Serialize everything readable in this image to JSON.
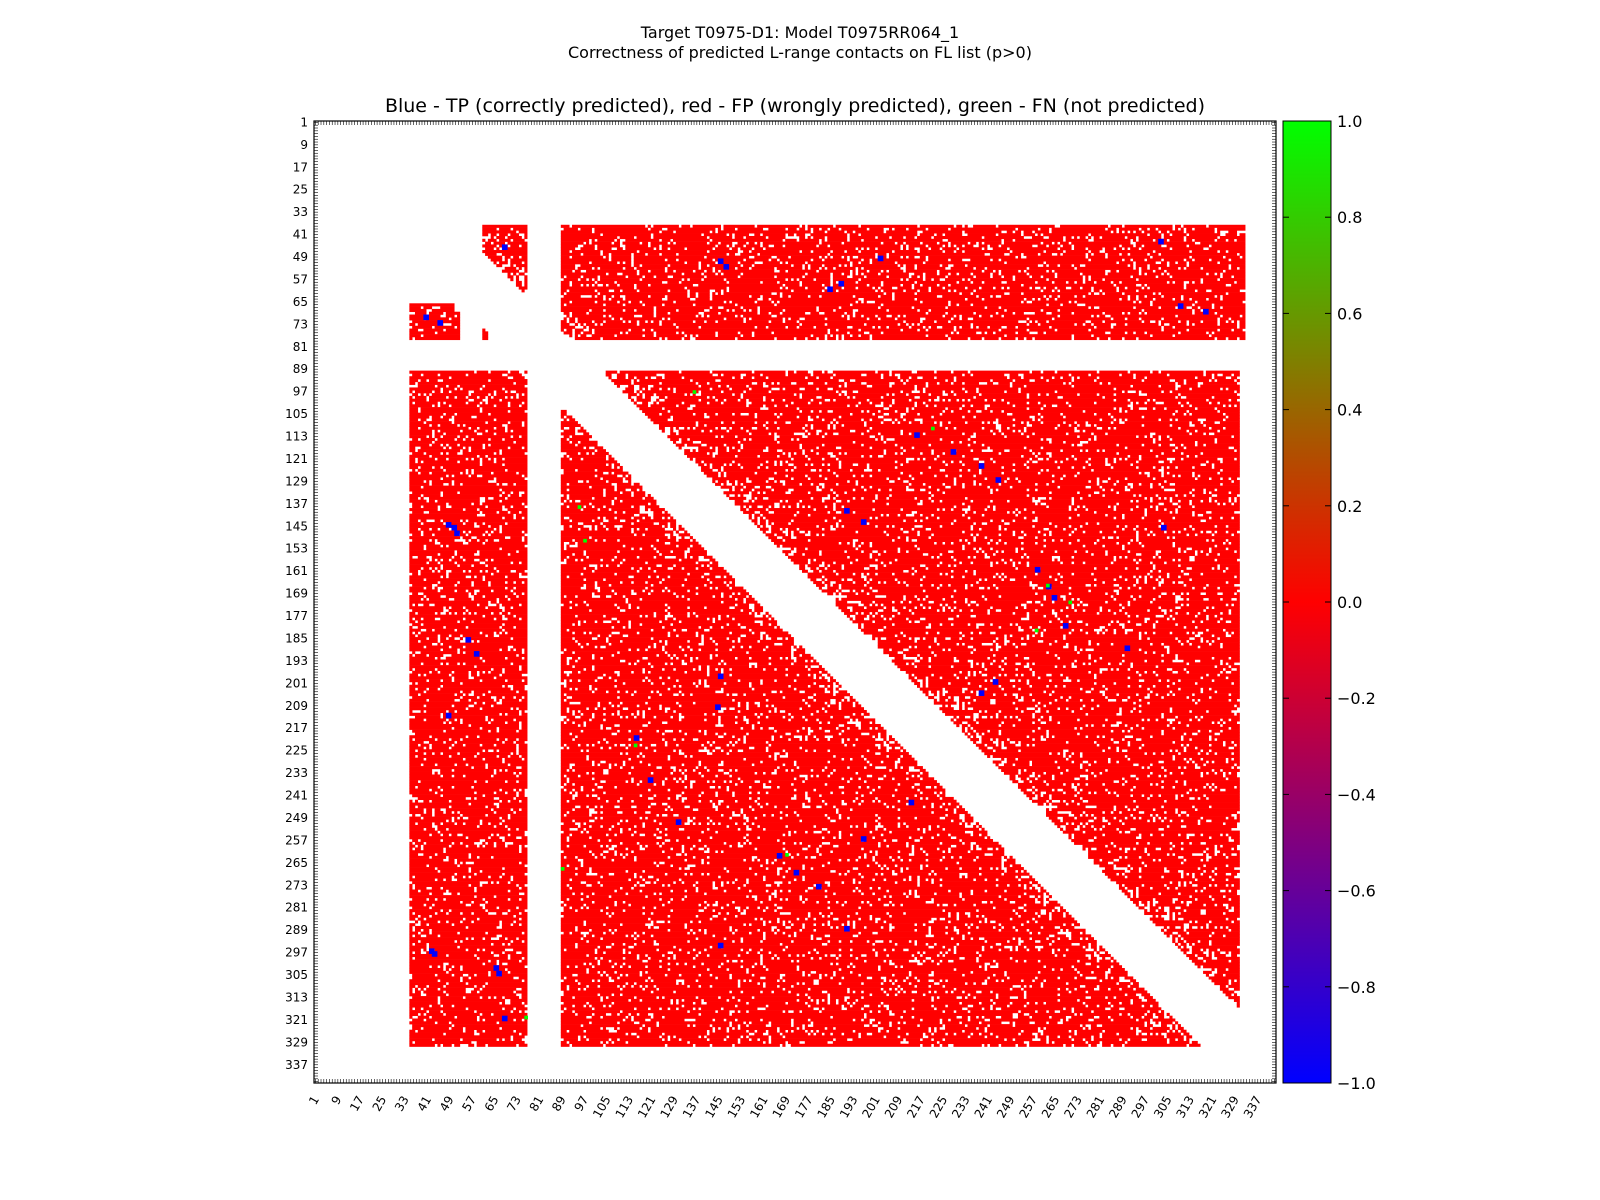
{
  "chart_data": {
    "type": "heatmap",
    "title": "Target T0975-D1: Model T0975RR064_1",
    "subtitle": "Correctness of predicted L-range contacts on FL list (p>0)",
    "plot_title": "Blue - TP (correctly predicted), red - FP (wrongly predicted), green - FN (not predicted)",
    "xlabel": "",
    "ylabel": "",
    "x_ticks": [
      "1",
      "9",
      "17",
      "25",
      "33",
      "41",
      "49",
      "57",
      "65",
      "73",
      "81",
      "89",
      "97",
      "105",
      "113",
      "121",
      "129",
      "137",
      "145",
      "153",
      "161",
      "169",
      "177",
      "185",
      "193",
      "201",
      "209",
      "217",
      "225",
      "233",
      "241",
      "249",
      "257",
      "265",
      "273",
      "281",
      "289",
      "297",
      "305",
      "313",
      "321",
      "329",
      "337"
    ],
    "y_ticks": [
      "1",
      "9",
      "17",
      "25",
      "33",
      "41",
      "49",
      "57",
      "65",
      "73",
      "81",
      "89",
      "97",
      "105",
      "113",
      "121",
      "129",
      "137",
      "145",
      "153",
      "161",
      "169",
      "177",
      "185",
      "193",
      "201",
      "209",
      "217",
      "225",
      "233",
      "241",
      "249",
      "257",
      "265",
      "273",
      "281",
      "289",
      "297",
      "305",
      "313",
      "321",
      "329",
      "337"
    ],
    "residue_range": [
      1,
      343
    ],
    "colorbar": {
      "ticks": [
        "1.0",
        "0.8",
        "0.6",
        "0.4",
        "0.2",
        "0.0",
        "−0.2",
        "−0.4",
        "−0.6",
        "−0.8",
        "−1.0"
      ],
      "range": [
        -1.0,
        1.0
      ],
      "stops": [
        "#0000ff",
        "#ff0000",
        "#00ff00"
      ]
    },
    "legend": {
      "TP": {
        "value": -1.0,
        "color": "#0000ff"
      },
      "FP": {
        "value": 0.0,
        "color": "#ff0000"
      },
      "FN": {
        "value": 1.0,
        "color": "#00ff00"
      }
    },
    "red_regions": [
      {
        "rows": [
          38,
          78
        ],
        "cols": [
          61,
          76
        ]
      },
      {
        "rows": [
          66,
          78
        ],
        "cols": [
          35,
          52
        ]
      },
      {
        "rows": [
          38,
          78
        ],
        "cols": [
          89,
          332
        ]
      },
      {
        "rows": [
          90,
          330
        ],
        "cols": [
          35,
          76
        ]
      },
      {
        "rows": [
          90,
          330
        ],
        "cols": [
          89,
          330
        ]
      }
    ],
    "diagonal_gap_rows": [
      79,
      89
    ],
    "diagonal_gap_cols": [
      77,
      88
    ],
    "blue_clusters": [
      {
        "row": 45,
        "col": 68
      },
      {
        "row": 50,
        "col": 145
      },
      {
        "row": 52,
        "col": 147
      },
      {
        "row": 49,
        "col": 202
      },
      {
        "row": 43,
        "col": 302
      },
      {
        "row": 66,
        "col": 309
      },
      {
        "row": 68,
        "col": 318
      },
      {
        "row": 60,
        "col": 184
      },
      {
        "row": 58,
        "col": 188
      },
      {
        "row": 70,
        "col": 40
      },
      {
        "row": 72,
        "col": 45
      },
      {
        "row": 144,
        "col": 48
      },
      {
        "row": 145,
        "col": 50
      },
      {
        "row": 147,
        "col": 51
      },
      {
        "row": 185,
        "col": 55
      },
      {
        "row": 190,
        "col": 58
      },
      {
        "row": 212,
        "col": 48
      },
      {
        "row": 296,
        "col": 42
      },
      {
        "row": 297,
        "col": 43
      },
      {
        "row": 302,
        "col": 65
      },
      {
        "row": 304,
        "col": 66
      },
      {
        "row": 320,
        "col": 68
      },
      {
        "row": 112,
        "col": 215
      },
      {
        "row": 118,
        "col": 228
      },
      {
        "row": 123,
        "col": 238
      },
      {
        "row": 128,
        "col": 244
      },
      {
        "row": 139,
        "col": 190
      },
      {
        "row": 143,
        "col": 196
      },
      {
        "row": 145,
        "col": 303
      },
      {
        "row": 160,
        "col": 258
      },
      {
        "row": 166,
        "col": 262
      },
      {
        "row": 170,
        "col": 264
      },
      {
        "row": 180,
        "col": 268
      },
      {
        "row": 188,
        "col": 290
      },
      {
        "row": 200,
        "col": 243
      },
      {
        "row": 204,
        "col": 238
      },
      {
        "row": 198,
        "col": 145
      },
      {
        "row": 209,
        "col": 144
      },
      {
        "row": 220,
        "col": 115
      },
      {
        "row": 235,
        "col": 120
      },
      {
        "row": 250,
        "col": 130
      },
      {
        "row": 256,
        "col": 196
      },
      {
        "row": 262,
        "col": 166
      },
      {
        "row": 268,
        "col": 172
      },
      {
        "row": 273,
        "col": 180
      },
      {
        "row": 288,
        "col": 190
      },
      {
        "row": 294,
        "col": 145
      },
      {
        "row": 243,
        "col": 213
      }
    ],
    "green_clusters": [
      {
        "row": 97,
        "col": 136
      },
      {
        "row": 110,
        "col": 221
      },
      {
        "row": 138,
        "col": 95
      },
      {
        "row": 150,
        "col": 97
      },
      {
        "row": 166,
        "col": 262
      },
      {
        "row": 172,
        "col": 270
      },
      {
        "row": 182,
        "col": 258
      },
      {
        "row": 223,
        "col": 115
      },
      {
        "row": 262,
        "col": 169
      },
      {
        "row": 267,
        "col": 89
      },
      {
        "row": 320,
        "col": 76
      }
    ]
  }
}
